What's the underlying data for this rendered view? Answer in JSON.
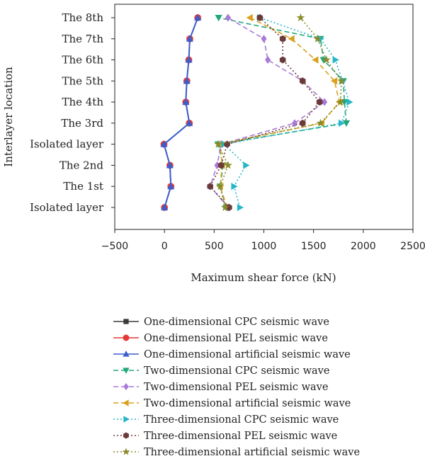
{
  "chart_data": {
    "type": "line",
    "orientation": "horizontal",
    "title": "",
    "xlabel": "Maximum shear force (kN)",
    "ylabel": "Interlayer location",
    "xlim": [
      -500,
      2500
    ],
    "xticks": [
      -500,
      0,
      500,
      1000,
      1500,
      2000,
      2500
    ],
    "categories": [
      "Isolated layer",
      "The 1st",
      "The 2nd",
      "Isolated layer",
      "The 3rd",
      "The 4th",
      "The 5th",
      "The 6th",
      "The 7th",
      "The 8th"
    ],
    "grid": false,
    "legend_position": "below",
    "series": [
      {
        "name": "One-dimensional CPC seismic wave",
        "color": "#3a3a3a",
        "marker": "square",
        "dash": "solid",
        "values": [
          0,
          65,
          55,
          -5,
          250,
          215,
          225,
          245,
          255,
          335
        ]
      },
      {
        "name": "One-dimensional PEL seismic wave",
        "color": "#e53935",
        "marker": "circle",
        "dash": "solid",
        "values": [
          0,
          65,
          55,
          -5,
          250,
          215,
          225,
          245,
          255,
          335
        ]
      },
      {
        "name": "One-dimensional artificial seismic wave",
        "color": "#3a5fcd",
        "marker": "triangle-up",
        "dash": "solid",
        "values": [
          0,
          65,
          55,
          -5,
          250,
          215,
          225,
          245,
          255,
          335
        ]
      },
      {
        "name": "Two-dimensional CPC seismic wave",
        "color": "#22a77a",
        "marker": "triangle-down",
        "dash": "dashed",
        "values": [
          620,
          560,
          590,
          540,
          1830,
          1810,
          1800,
          1600,
          1570,
          545
        ]
      },
      {
        "name": "Two-dimensional PEL seismic wave",
        "color": "#a97ad6",
        "marker": "diamond",
        "dash": "dashed",
        "values": [
          640,
          460,
          530,
          570,
          1310,
          1610,
          1390,
          1040,
          1000,
          640
        ]
      },
      {
        "name": "Two-dimensional artificial seismic wave",
        "color": "#d9a11c",
        "marker": "triangle-left",
        "dash": "dashed",
        "values": [
          630,
          560,
          580,
          560,
          1580,
          1760,
          1710,
          1520,
          1280,
          860
        ]
      },
      {
        "name": "Three-dimensional CPC seismic wave",
        "color": "#27b6c8",
        "marker": "triangle-right",
        "dash": "dotted",
        "values": [
          760,
          700,
          820,
          600,
          1780,
          1860,
          1790,
          1720,
          1570,
          960
        ]
      },
      {
        "name": "Three-dimensional PEL seismic wave",
        "color": "#6b3a3a",
        "marker": "hexagon",
        "dash": "dotted",
        "values": [
          650,
          460,
          570,
          630,
          1390,
          1560,
          1390,
          1190,
          1190,
          960
        ]
      },
      {
        "name": "Three-dimensional artificial seismic wave",
        "color": "#8a8a2a",
        "marker": "star",
        "dash": "dotted",
        "values": [
          610,
          560,
          640,
          540,
          1570,
          1770,
          1780,
          1630,
          1540,
          1370
        ]
      }
    ]
  }
}
